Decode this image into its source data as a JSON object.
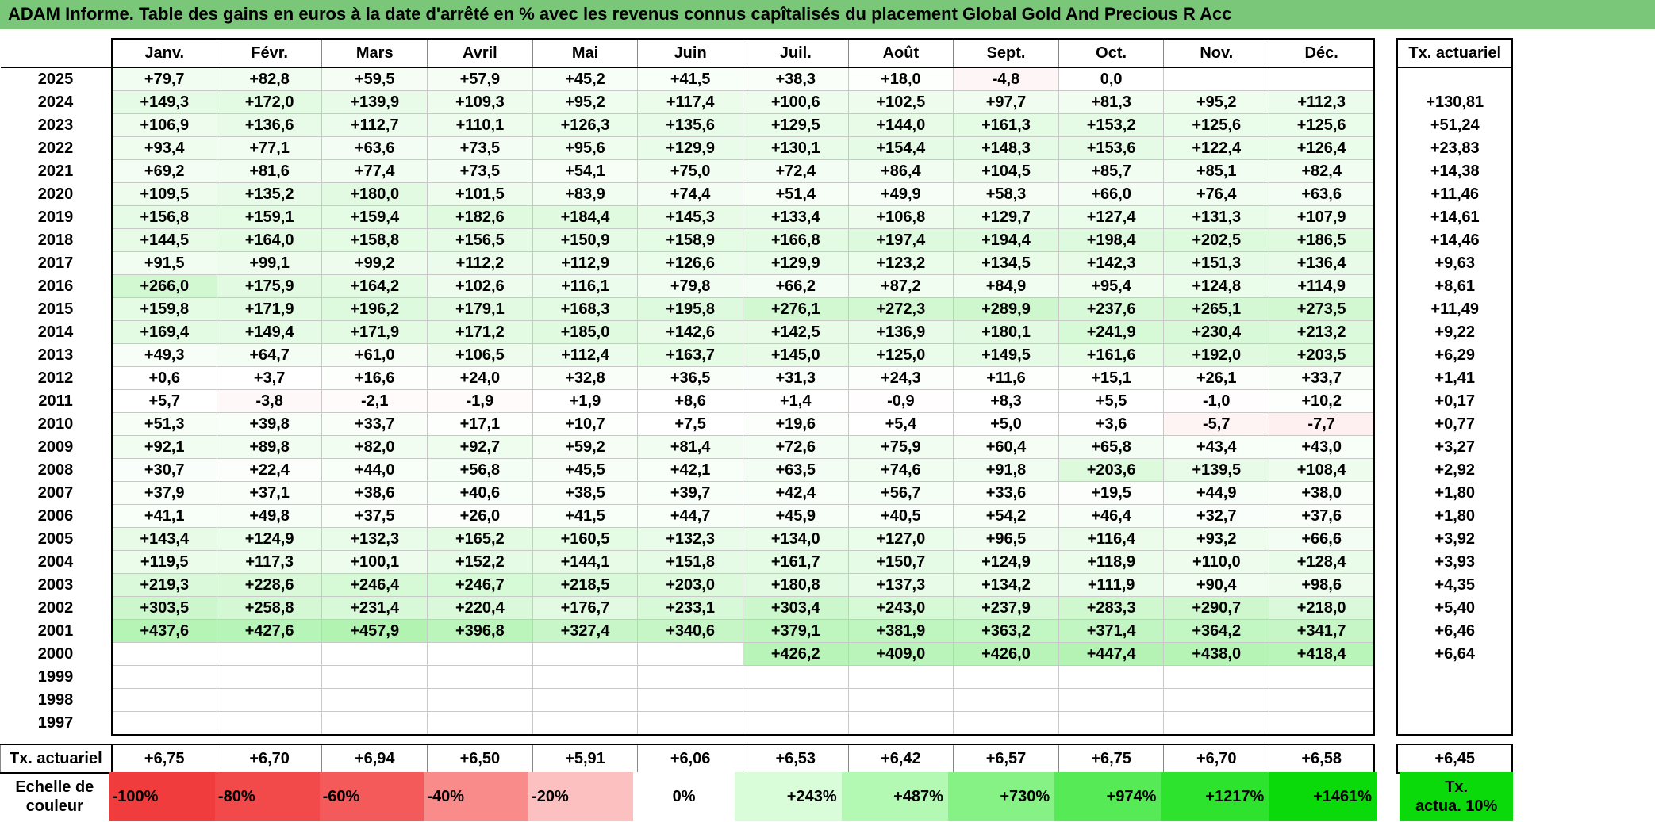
{
  "title": "ADAM Informe. Table des gains en euros à la date d'arrêté en % avec les revenus connus capîtalisés du placement Global Gold And Precious R Acc",
  "months": [
    "Janv.",
    "Févr.",
    "Mars",
    "Avril",
    "Mai",
    "Juin",
    "Juil.",
    "Août",
    "Sept.",
    "Oct.",
    "Nov.",
    "Déc."
  ],
  "rate_header": "Tx. actuariel",
  "rows": [
    {
      "year": "2025",
      "values": [
        "+79,7",
        "+82,8",
        "+59,5",
        "+57,9",
        "+45,2",
        "+41,5",
        "+38,3",
        "+18,0",
        "-4,8",
        "0,0",
        "",
        ""
      ],
      "rate": ""
    },
    {
      "year": "2024",
      "values": [
        "+149,3",
        "+172,0",
        "+139,9",
        "+109,3",
        "+95,2",
        "+117,4",
        "+100,6",
        "+102,5",
        "+97,7",
        "+81,3",
        "+95,2",
        "+112,3"
      ],
      "rate": "+130,81"
    },
    {
      "year": "2023",
      "values": [
        "+106,9",
        "+136,6",
        "+112,7",
        "+110,1",
        "+126,3",
        "+135,6",
        "+129,5",
        "+144,0",
        "+161,3",
        "+153,2",
        "+125,6",
        "+125,6"
      ],
      "rate": "+51,24"
    },
    {
      "year": "2022",
      "values": [
        "+93,4",
        "+77,1",
        "+63,6",
        "+73,5",
        "+95,6",
        "+129,9",
        "+130,1",
        "+154,4",
        "+148,3",
        "+153,6",
        "+122,4",
        "+126,4"
      ],
      "rate": "+23,83"
    },
    {
      "year": "2021",
      "values": [
        "+69,2",
        "+81,6",
        "+77,4",
        "+73,5",
        "+54,1",
        "+75,0",
        "+72,4",
        "+86,4",
        "+104,5",
        "+85,7",
        "+85,1",
        "+82,4"
      ],
      "rate": "+14,38"
    },
    {
      "year": "2020",
      "values": [
        "+109,5",
        "+135,2",
        "+180,0",
        "+101,5",
        "+83,9",
        "+74,4",
        "+51,4",
        "+49,9",
        "+58,3",
        "+66,0",
        "+76,4",
        "+63,6"
      ],
      "rate": "+11,46"
    },
    {
      "year": "2019",
      "values": [
        "+156,8",
        "+159,1",
        "+159,4",
        "+182,6",
        "+184,4",
        "+145,3",
        "+133,4",
        "+106,8",
        "+129,7",
        "+127,4",
        "+131,3",
        "+107,9"
      ],
      "rate": "+14,61"
    },
    {
      "year": "2018",
      "values": [
        "+144,5",
        "+164,0",
        "+158,8",
        "+156,5",
        "+150,9",
        "+158,9",
        "+166,8",
        "+197,4",
        "+194,4",
        "+198,4",
        "+202,5",
        "+186,5"
      ],
      "rate": "+14,46"
    },
    {
      "year": "2017",
      "values": [
        "+91,5",
        "+99,1",
        "+99,2",
        "+112,2",
        "+112,9",
        "+126,6",
        "+129,9",
        "+123,2",
        "+134,5",
        "+142,3",
        "+151,3",
        "+136,4"
      ],
      "rate": "+9,63"
    },
    {
      "year": "2016",
      "values": [
        "+266,0",
        "+175,9",
        "+164,2",
        "+102,6",
        "+116,1",
        "+79,8",
        "+66,2",
        "+87,2",
        "+84,9",
        "+95,4",
        "+124,8",
        "+114,9"
      ],
      "rate": "+8,61"
    },
    {
      "year": "2015",
      "values": [
        "+159,8",
        "+171,9",
        "+196,2",
        "+179,1",
        "+168,3",
        "+195,8",
        "+276,1",
        "+272,3",
        "+289,9",
        "+237,6",
        "+265,1",
        "+273,5"
      ],
      "rate": "+11,49"
    },
    {
      "year": "2014",
      "values": [
        "+169,4",
        "+149,4",
        "+171,9",
        "+171,2",
        "+185,0",
        "+142,6",
        "+142,5",
        "+136,9",
        "+180,1",
        "+241,9",
        "+230,4",
        "+213,2"
      ],
      "rate": "+9,22"
    },
    {
      "year": "2013",
      "values": [
        "+49,3",
        "+64,7",
        "+61,0",
        "+106,5",
        "+112,4",
        "+163,7",
        "+145,0",
        "+125,0",
        "+149,5",
        "+161,6",
        "+192,0",
        "+203,5"
      ],
      "rate": "+6,29"
    },
    {
      "year": "2012",
      "values": [
        "+0,6",
        "+3,7",
        "+16,6",
        "+24,0",
        "+32,8",
        "+36,5",
        "+31,3",
        "+24,3",
        "+11,6",
        "+15,1",
        "+26,1",
        "+33,7"
      ],
      "rate": "+1,41"
    },
    {
      "year": "2011",
      "values": [
        "+5,7",
        "-3,8",
        "-2,1",
        "-1,9",
        "+1,9",
        "+8,6",
        "+1,4",
        "-0,9",
        "+8,3",
        "+5,5",
        "-1,0",
        "+10,2"
      ],
      "rate": "+0,17"
    },
    {
      "year": "2010",
      "values": [
        "+51,3",
        "+39,8",
        "+33,7",
        "+17,1",
        "+10,7",
        "+7,5",
        "+19,6",
        "+5,4",
        "+5,0",
        "+3,6",
        "-5,7",
        "-7,7"
      ],
      "rate": "+0,77"
    },
    {
      "year": "2009",
      "values": [
        "+92,1",
        "+89,8",
        "+82,0",
        "+92,7",
        "+59,2",
        "+81,4",
        "+72,6",
        "+75,9",
        "+60,4",
        "+65,8",
        "+43,4",
        "+43,0"
      ],
      "rate": "+3,27"
    },
    {
      "year": "2008",
      "values": [
        "+30,7",
        "+22,4",
        "+44,0",
        "+56,8",
        "+45,5",
        "+42,1",
        "+63,5",
        "+74,6",
        "+91,8",
        "+203,6",
        "+139,5",
        "+108,4"
      ],
      "rate": "+2,92"
    },
    {
      "year": "2007",
      "values": [
        "+37,9",
        "+37,1",
        "+38,6",
        "+40,6",
        "+38,5",
        "+39,7",
        "+42,4",
        "+56,7",
        "+33,6",
        "+19,5",
        "+44,9",
        "+38,0"
      ],
      "rate": "+1,80"
    },
    {
      "year": "2006",
      "values": [
        "+41,1",
        "+49,8",
        "+37,5",
        "+26,0",
        "+41,5",
        "+44,7",
        "+45,9",
        "+40,5",
        "+54,2",
        "+46,4",
        "+32,7",
        "+37,6"
      ],
      "rate": "+1,80"
    },
    {
      "year": "2005",
      "values": [
        "+143,4",
        "+124,9",
        "+132,3",
        "+165,2",
        "+160,5",
        "+132,3",
        "+134,0",
        "+127,0",
        "+96,5",
        "+116,4",
        "+93,2",
        "+66,6"
      ],
      "rate": "+3,92"
    },
    {
      "year": "2004",
      "values": [
        "+119,5",
        "+117,3",
        "+100,1",
        "+152,2",
        "+144,1",
        "+151,8",
        "+161,7",
        "+150,7",
        "+124,9",
        "+118,9",
        "+110,0",
        "+128,4"
      ],
      "rate": "+3,93"
    },
    {
      "year": "2003",
      "values": [
        "+219,3",
        "+228,6",
        "+246,4",
        "+246,7",
        "+218,5",
        "+203,0",
        "+180,8",
        "+137,3",
        "+134,2",
        "+111,9",
        "+90,4",
        "+98,6"
      ],
      "rate": "+4,35"
    },
    {
      "year": "2002",
      "values": [
        "+303,5",
        "+258,8",
        "+231,4",
        "+220,4",
        "+176,7",
        "+233,1",
        "+303,4",
        "+243,0",
        "+237,9",
        "+283,3",
        "+290,7",
        "+218,0"
      ],
      "rate": "+5,40"
    },
    {
      "year": "2001",
      "values": [
        "+437,6",
        "+427,6",
        "+457,9",
        "+396,8",
        "+327,4",
        "+340,6",
        "+379,1",
        "+381,9",
        "+363,2",
        "+371,4",
        "+364,2",
        "+341,7"
      ],
      "rate": "+6,46"
    },
    {
      "year": "2000",
      "values": [
        "",
        "",
        "",
        "",
        "",
        "",
        "+426,2",
        "+409,0",
        "+426,0",
        "+447,4",
        "+438,0",
        "+418,4"
      ],
      "rate": "+6,64"
    },
    {
      "year": "1999",
      "values": [
        "",
        "",
        "",
        "",
        "",
        "",
        "",
        "",
        "",
        "",
        "",
        ""
      ],
      "rate": ""
    },
    {
      "year": "1998",
      "values": [
        "",
        "",
        "",
        "",
        "",
        "",
        "",
        "",
        "",
        "",
        "",
        ""
      ],
      "rate": ""
    },
    {
      "year": "1997",
      "values": [
        "",
        "",
        "",
        "",
        "",
        "",
        "",
        "",
        "",
        "",
        "",
        ""
      ],
      "rate": ""
    }
  ],
  "footer": {
    "label": "Tx. actuariel",
    "values": [
      "+6,75",
      "+6,70",
      "+6,94",
      "+6,50",
      "+5,91",
      "+6,06",
      "+6,53",
      "+6,42",
      "+6,57",
      "+6,75",
      "+6,70",
      "+6,58"
    ],
    "rate": "+6,45"
  },
  "scale": {
    "label_line1": "Echelle de",
    "label_line2": "couleur",
    "items": [
      {
        "text": "-100%",
        "color": "#f03c3c"
      },
      {
        "text": "-80%",
        "color": "#f24a4a"
      },
      {
        "text": "-60%",
        "color": "#f55a5a"
      },
      {
        "text": "-40%",
        "color": "#f98b8b"
      },
      {
        "text": "-20%",
        "color": "#fcc0c0"
      },
      {
        "text": "0%",
        "color": "#ffffff"
      },
      {
        "text": "+243%",
        "color": "#d9fcd9"
      },
      {
        "text": "+487%",
        "color": "#b3f8b3"
      },
      {
        "text": "+730%",
        "color": "#86f286"
      },
      {
        "text": "+974%",
        "color": "#57ea57"
      },
      {
        "text": "+1217%",
        "color": "#2ee32e"
      },
      {
        "text": "+1461%",
        "color": "#0ad90a"
      }
    ],
    "rate_line1": "Tx.",
    "rate_line2": "actua. 10%",
    "rate_color": "#0ad90a"
  },
  "colors": {
    "title_bg": "#7ac77a",
    "positive_max": "#0ad90a",
    "negative_max": "#f03c3c"
  }
}
